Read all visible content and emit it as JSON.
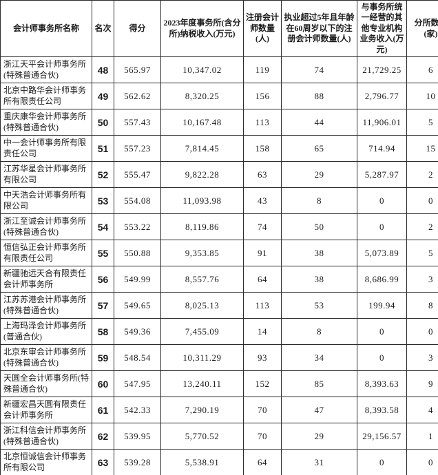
{
  "table": {
    "columns": [
      {
        "label": "会计师事务所名称"
      },
      {
        "label": "名次"
      },
      {
        "label": "得分"
      },
      {
        "label": "2023年度事务所(含分所)纳税收入(万元)"
      },
      {
        "label": "注册会计师数量(人)"
      },
      {
        "label": "执业超过5年且年龄在60周岁以下的注册会计师数量(人)"
      },
      {
        "label": "与事务所统一经营的其他专业机构业务收入(万元)"
      },
      {
        "label": "分所数量(家)"
      }
    ],
    "rows": [
      {
        "name": "浙江天平会计师事务所(特殊普通合伙)",
        "rank": "48",
        "score": "565.97",
        "revenue": "10,347.02",
        "cpa": "119",
        "cpa5": "74",
        "other": "21,729.25",
        "branches": "6"
      },
      {
        "name": "北京中路华会计师事务所有限责任公司",
        "rank": "49",
        "score": "562.62",
        "revenue": "8,320.25",
        "cpa": "156",
        "cpa5": "88",
        "other": "2,796.77",
        "branches": "10"
      },
      {
        "name": "重庆康华会计师事务所(特殊普通合伙)",
        "rank": "50",
        "score": "557.43",
        "revenue": "10,167.48",
        "cpa": "113",
        "cpa5": "44",
        "other": "11,906.01",
        "branches": "5"
      },
      {
        "name": "中一会计师事务所有限责任公司",
        "rank": "51",
        "score": "557.23",
        "revenue": "7,814.45",
        "cpa": "158",
        "cpa5": "65",
        "other": "714.94",
        "branches": "15"
      },
      {
        "name": "江苏华星会计师事务所有限公司",
        "rank": "52",
        "score": "555.47",
        "revenue": "9,822.28",
        "cpa": "63",
        "cpa5": "29",
        "other": "5,287.97",
        "branches": "2"
      },
      {
        "name": "中天浩会计师事务所有限公司",
        "rank": "53",
        "score": "554.08",
        "revenue": "11,093.98",
        "cpa": "43",
        "cpa5": "8",
        "other": "0",
        "branches": "0"
      },
      {
        "name": "浙江至诚会计师事务所(特殊普通合伙)",
        "rank": "54",
        "score": "553.22",
        "revenue": "8,119.86",
        "cpa": "74",
        "cpa5": "50",
        "other": "0",
        "branches": "2"
      },
      {
        "name": "恒信弘正会计师事务所有限责任公司",
        "rank": "55",
        "score": "550.88",
        "revenue": "9,353.85",
        "cpa": "91",
        "cpa5": "38",
        "other": "5,073.89",
        "branches": "5"
      },
      {
        "name": "新疆驰远天合有限责任会计师事务所",
        "rank": "56",
        "score": "549.99",
        "revenue": "8,557.76",
        "cpa": "64",
        "cpa5": "38",
        "other": "8,686.99",
        "branches": "3"
      },
      {
        "name": "江苏苏港会计师事务所(特殊普通合伙)",
        "rank": "57",
        "score": "549.65",
        "revenue": "8,025.13",
        "cpa": "113",
        "cpa5": "53",
        "other": "199.94",
        "branches": "8"
      },
      {
        "name": "上海玛泽会计师事务所(普通合伙)",
        "rank": "58",
        "score": "549.36",
        "revenue": "7,455.09",
        "cpa": "14",
        "cpa5": "8",
        "other": "0",
        "branches": "0"
      },
      {
        "name": "北京东审会计师事务所(特殊普通合伙)",
        "rank": "59",
        "score": "548.54",
        "revenue": "10,311.29",
        "cpa": "93",
        "cpa5": "34",
        "other": "0",
        "branches": "3"
      },
      {
        "name": "天圆全会计师事务所(特殊普通合伙)",
        "rank": "60",
        "score": "547.95",
        "revenue": "13,240.11",
        "cpa": "152",
        "cpa5": "85",
        "other": "8,393.63",
        "branches": "9"
      },
      {
        "name": "新疆宏昌天圆有限责任会计师事务所",
        "rank": "61",
        "score": "542.33",
        "revenue": "7,290.19",
        "cpa": "70",
        "cpa5": "47",
        "other": "8,393.58",
        "branches": "4"
      },
      {
        "name": "浙江科信会计师事务所(特殊普通合伙)",
        "rank": "62",
        "score": "539.95",
        "revenue": "5,770.52",
        "cpa": "70",
        "cpa5": "29",
        "other": "29,156.57",
        "branches": "1"
      },
      {
        "name": "北京恒诚信会计师事务所有限公司",
        "rank": "63",
        "score": "539.28",
        "revenue": "5,538.91",
        "cpa": "64",
        "cpa5": "31",
        "other": "0",
        "branches": "0"
      }
    ]
  }
}
